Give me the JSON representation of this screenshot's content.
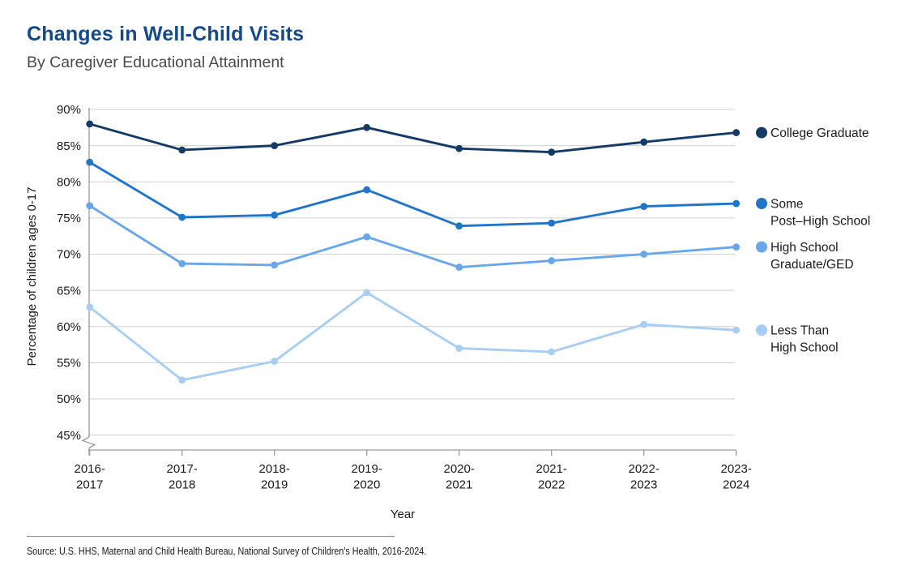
{
  "header": {
    "title": "Changes in Well-Child Visits",
    "subtitle": "By Caregiver Educational Attainment"
  },
  "chart_data": {
    "type": "line",
    "title": "Changes in Well-Child Visits",
    "subtitle": "By Caregiver Educational Attainment",
    "xlabel": "Year",
    "ylabel": "Percentage of children ages 0-17",
    "categories": [
      "2016-2017",
      "2017-2018",
      "2018-2019",
      "2019-2020",
      "2020-2021",
      "2021-2022",
      "2022-2023",
      "2023-2024"
    ],
    "x_tick_lines": [
      [
        "2016-",
        "2017"
      ],
      [
        "2017-",
        "2018"
      ],
      [
        "2018-",
        "2019"
      ],
      [
        "2019-",
        "2020"
      ],
      [
        "2020-",
        "2021"
      ],
      [
        "2021-",
        "2022"
      ],
      [
        "2022-",
        "2023"
      ],
      [
        "2023-",
        "2024"
      ]
    ],
    "yticks": [
      90,
      85,
      80,
      75,
      70,
      65,
      60,
      55,
      50,
      45
    ],
    "ytick_suffix": "%",
    "ylim": [
      45,
      90
    ],
    "axis_break": true,
    "grid": "horizontal",
    "legend_position": "right-of-last-point",
    "series": [
      {
        "name": "College Graduate",
        "label_lines": [
          "College Graduate"
        ],
        "color": "#163a66",
        "values": [
          88.0,
          84.4,
          85.0,
          87.5,
          84.6,
          84.1,
          85.5,
          86.8
        ]
      },
      {
        "name": "Some Post–High School",
        "label_lines": [
          "Some",
          "Post–High School"
        ],
        "color": "#2175c8",
        "values": [
          82.7,
          75.1,
          75.4,
          78.9,
          73.9,
          74.3,
          76.6,
          77.0
        ]
      },
      {
        "name": "High School Graduate/GED",
        "label_lines": [
          "High School",
          "Graduate/GED"
        ],
        "color": "#6aa7e8",
        "values": [
          76.7,
          68.7,
          68.5,
          72.4,
          68.2,
          69.1,
          70.0,
          71.0
        ]
      },
      {
        "name": "Less Than High School",
        "label_lines": [
          "Less Than",
          "High School"
        ],
        "color": "#a9cdf3",
        "values": [
          62.7,
          52.6,
          55.2,
          64.7,
          57.0,
          56.5,
          60.3,
          59.5
        ]
      }
    ]
  },
  "footer": {
    "source": "Source: U.S. HHS, Maternal and Child Health Bureau, National Survey of Children's Health, 2016-2024."
  }
}
